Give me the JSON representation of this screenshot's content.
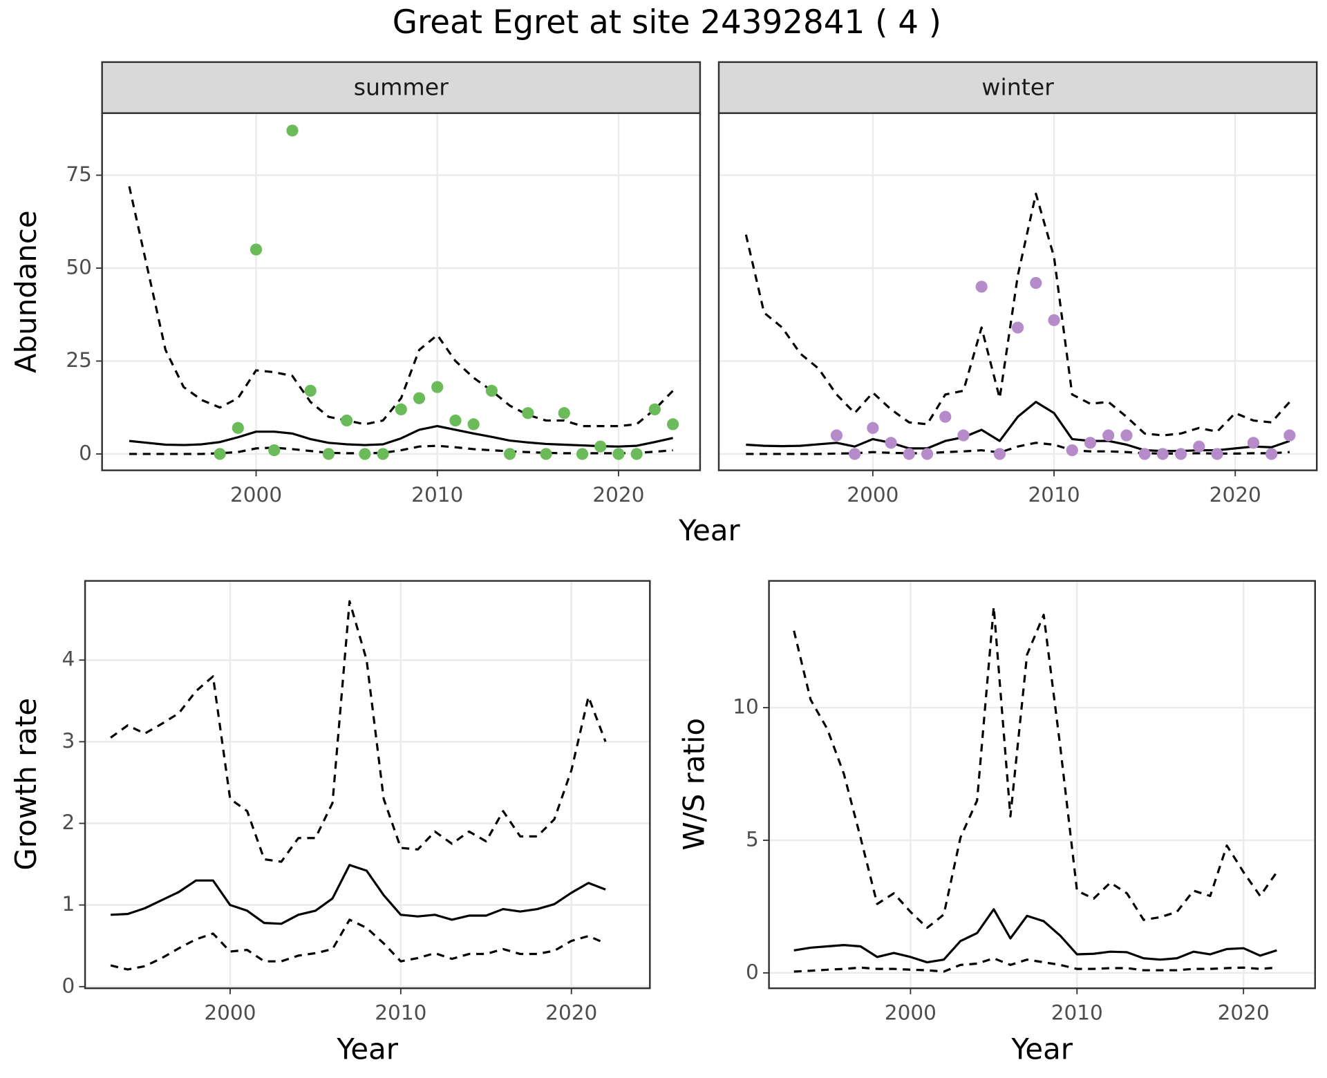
{
  "title": "Great Egret at site 24392841 ( 4 )",
  "chart_data": [
    {
      "type": "line",
      "title": "summer",
      "xlabel": "Year",
      "ylabel": "Abundance",
      "xlim": [
        1991.5,
        2024.5
      ],
      "ylim": [
        -4.4,
        91.7
      ],
      "xticks": [
        2000,
        2010,
        2020
      ],
      "yticks": [
        0,
        25,
        50,
        75
      ],
      "grid": true,
      "x": [
        1993,
        1994,
        1995,
        1996,
        1997,
        1998,
        1999,
        2000,
        2001,
        2002,
        2003,
        2004,
        2005,
        2006,
        2007,
        2008,
        2009,
        2010,
        2011,
        2012,
        2013,
        2014,
        2015,
        2016,
        2017,
        2018,
        2019,
        2020,
        2021,
        2022,
        2023
      ],
      "series": [
        {
          "style": "dashed",
          "color": "#000000",
          "values": [
            72,
            50,
            28,
            18,
            14.5,
            12.5,
            15,
            22.5,
            22,
            21,
            14,
            10,
            9,
            8,
            9,
            15,
            28,
            32,
            25,
            20.5,
            17,
            13,
            10.5,
            9,
            9,
            7.5,
            7.5,
            7.5,
            8,
            12,
            17
          ]
        },
        {
          "style": "solid",
          "color": "#000000",
          "values": [
            3.5,
            3,
            2.5,
            2.4,
            2.6,
            3.2,
            4.5,
            6,
            6,
            5.5,
            4,
            3,
            2.6,
            2.4,
            2.6,
            4.2,
            6.5,
            7.5,
            6.5,
            5.5,
            4.6,
            3.6,
            3.1,
            2.7,
            2.5,
            2.3,
            2.1,
            2,
            2.2,
            3.2,
            4.3
          ]
        },
        {
          "style": "dashed",
          "color": "#000000",
          "values": [
            0,
            0,
            0,
            0,
            0,
            0.2,
            0.5,
            1.5,
            1.7,
            1.3,
            0.8,
            0.3,
            0.2,
            0.2,
            0.3,
            1,
            2,
            2.2,
            1.8,
            1.3,
            1,
            0.7,
            0.5,
            0.3,
            0.2,
            0.2,
            0.2,
            0.2,
            0.3,
            0.6,
            1
          ]
        },
        {
          "style": "points",
          "color": "#6bbb5a",
          "x": [
            1998,
            1999,
            2000,
            2001,
            2002,
            2003,
            2004,
            2005,
            2006,
            2007,
            2008,
            2009,
            2010,
            2011,
            2012,
            2013,
            2014,
            2015,
            2016,
            2017,
            2018,
            2019,
            2020,
            2021,
            2022,
            2023
          ],
          "values": [
            0,
            7,
            55,
            1,
            87,
            17,
            0,
            9,
            0,
            0,
            12,
            15,
            18,
            9,
            8,
            17,
            0,
            11,
            0,
            11,
            0,
            2,
            0,
            0,
            12,
            8
          ]
        }
      ]
    },
    {
      "type": "line",
      "title": "winter",
      "xlim": [
        1991.5,
        2024.5
      ],
      "xticks": [
        2000,
        2010,
        2020
      ],
      "grid": true,
      "x": [
        1993,
        1994,
        1995,
        1996,
        1997,
        1998,
        1999,
        2000,
        2001,
        2002,
        2003,
        2004,
        2005,
        2006,
        2007,
        2008,
        2009,
        2010,
        2011,
        2012,
        2013,
        2014,
        2015,
        2016,
        2017,
        2018,
        2019,
        2020,
        2021,
        2022,
        2023
      ],
      "series": [
        {
          "style": "dashed",
          "color": "#000000",
          "values": [
            59,
            38,
            34,
            27,
            23,
            16,
            11,
            16.5,
            12,
            8.5,
            8,
            16,
            17,
            34,
            15,
            48,
            70,
            53,
            16,
            13.5,
            14,
            10,
            5.5,
            5,
            5.5,
            7,
            6,
            11,
            9,
            8.5,
            14
          ]
        },
        {
          "style": "solid",
          "color": "#000000",
          "values": [
            2.5,
            2.2,
            2.1,
            2.2,
            2.6,
            3,
            2,
            4,
            3,
            1.5,
            1.5,
            3.5,
            4.5,
            6.5,
            3.5,
            10,
            14,
            11,
            4,
            3.5,
            3.5,
            2.5,
            1,
            0.8,
            0.8,
            1,
            1,
            1.5,
            2,
            1.8,
            3.5
          ]
        },
        {
          "style": "dashed",
          "color": "#000000",
          "values": [
            0,
            0,
            0,
            0,
            0,
            0.1,
            0.2,
            0.5,
            0.3,
            0.2,
            0.2,
            0.5,
            0.7,
            1,
            0.4,
            2,
            3,
            2.5,
            1,
            0.7,
            0.7,
            0.5,
            0.2,
            0.1,
            0.1,
            0.2,
            0.1,
            0.1,
            0.2,
            0.2,
            0.5
          ]
        },
        {
          "style": "points",
          "color": "#b58bc9",
          "x": [
            1998,
            1999,
            2000,
            2001,
            2002,
            2003,
            2004,
            2005,
            2006,
            2007,
            2008,
            2009,
            2010,
            2011,
            2012,
            2013,
            2014,
            2015,
            2016,
            2017,
            2018,
            2019,
            2021,
            2022,
            2023
          ],
          "values": [
            5,
            0,
            7,
            3,
            0,
            0,
            10,
            5,
            45,
            0,
            34,
            46,
            36,
            1,
            3,
            5,
            5,
            0,
            0,
            0,
            2,
            0,
            3,
            0,
            5
          ]
        }
      ]
    },
    {
      "type": "line",
      "xlabel": "Year",
      "ylabel": "Growth rate",
      "xlim": [
        1991.5,
        2024.6
      ],
      "ylim": [
        -0.02,
        4.97
      ],
      "xticks": [
        2000,
        2010,
        2020
      ],
      "yticks": [
        0,
        1,
        2,
        3,
        4
      ],
      "grid": true,
      "x": [
        1993,
        1994,
        1995,
        1996,
        1997,
        1998,
        1999,
        2000,
        2001,
        2002,
        2003,
        2004,
        2005,
        2006,
        2007,
        2008,
        2009,
        2010,
        2011,
        2012,
        2013,
        2014,
        2015,
        2016,
        2017,
        2018,
        2019,
        2020,
        2021,
        2022
      ],
      "series": [
        {
          "style": "dashed",
          "color": "#000000",
          "values": [
            3.05,
            3.2,
            3.1,
            3.22,
            3.35,
            3.62,
            3.8,
            2.3,
            2.15,
            1.56,
            1.53,
            1.82,
            1.82,
            2.25,
            4.72,
            4.0,
            2.3,
            1.7,
            1.68,
            1.9,
            1.75,
            1.9,
            1.78,
            2.15,
            1.84,
            1.84,
            2.05,
            2.65,
            3.55,
            3.0
          ]
        },
        {
          "style": "solid",
          "color": "#000000",
          "values": [
            0.88,
            0.89,
            0.96,
            1.06,
            1.16,
            1.3,
            1.3,
            1.0,
            0.93,
            0.78,
            0.77,
            0.88,
            0.93,
            1.08,
            1.49,
            1.42,
            1.12,
            0.88,
            0.86,
            0.88,
            0.82,
            0.87,
            0.87,
            0.95,
            0.92,
            0.95,
            1.01,
            1.15,
            1.27,
            1.19
          ]
        },
        {
          "style": "dashed",
          "color": "#000000",
          "values": [
            0.26,
            0.21,
            0.25,
            0.35,
            0.47,
            0.58,
            0.65,
            0.43,
            0.45,
            0.31,
            0.31,
            0.38,
            0.41,
            0.46,
            0.82,
            0.72,
            0.53,
            0.31,
            0.35,
            0.41,
            0.34,
            0.4,
            0.4,
            0.46,
            0.4,
            0.4,
            0.44,
            0.56,
            0.62,
            0.53
          ]
        }
      ]
    },
    {
      "type": "line",
      "xlabel": "Year",
      "ylabel": "W/S ratio",
      "xlim": [
        1991.5,
        2024.3
      ],
      "ylim": [
        -0.58,
        14.78
      ],
      "xticks": [
        2000,
        2010,
        2020
      ],
      "yticks": [
        0,
        5,
        10
      ],
      "grid": true,
      "x": [
        1993,
        1994,
        1995,
        1996,
        1997,
        1998,
        1999,
        2000,
        2001,
        2002,
        2003,
        2004,
        2005,
        2006,
        2007,
        2008,
        2009,
        2010,
        2011,
        2012,
        2013,
        2014,
        2015,
        2016,
        2017,
        2018,
        2019,
        2020,
        2021,
        2022
      ],
      "series": [
        {
          "style": "dashed",
          "color": "#000000",
          "values": [
            12.9,
            10.3,
            9.2,
            7.5,
            5.1,
            2.6,
            3.0,
            2.3,
            1.7,
            2.2,
            5.1,
            6.5,
            13.8,
            5.9,
            12.0,
            13.5,
            8.5,
            3.1,
            2.8,
            3.4,
            3.0,
            2.0,
            2.1,
            2.3,
            3.1,
            2.9,
            4.8,
            3.8,
            2.9,
            3.8
          ]
        },
        {
          "style": "solid",
          "color": "#000000",
          "values": [
            0.85,
            0.95,
            1.0,
            1.05,
            1.0,
            0.6,
            0.75,
            0.6,
            0.4,
            0.5,
            1.2,
            1.5,
            2.4,
            1.3,
            2.15,
            1.95,
            1.4,
            0.7,
            0.72,
            0.8,
            0.78,
            0.55,
            0.5,
            0.55,
            0.8,
            0.7,
            0.9,
            0.93,
            0.65,
            0.85
          ]
        },
        {
          "style": "dashed",
          "color": "#000000",
          "values": [
            0.05,
            0.08,
            0.12,
            0.15,
            0.2,
            0.15,
            0.15,
            0.12,
            0.1,
            0.05,
            0.3,
            0.35,
            0.55,
            0.3,
            0.5,
            0.4,
            0.3,
            0.15,
            0.15,
            0.18,
            0.18,
            0.1,
            0.1,
            0.1,
            0.15,
            0.15,
            0.18,
            0.2,
            0.15,
            0.2
          ]
        }
      ]
    }
  ]
}
